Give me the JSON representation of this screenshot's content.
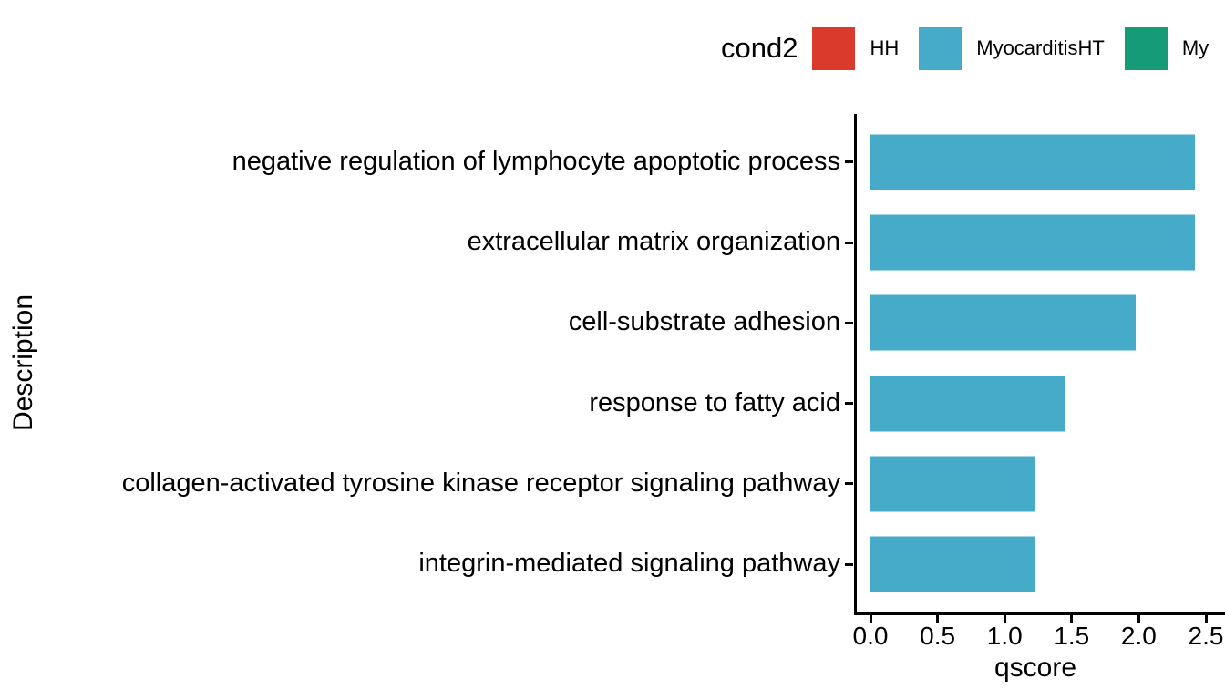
{
  "legend": {
    "title": "cond2",
    "items": [
      {
        "label": "HH",
        "color": "#d93a2b"
      },
      {
        "label": "MyocarditisHT",
        "color": "#45abc9"
      },
      {
        "label": "My",
        "color": "#169b77"
      }
    ]
  },
  "chart_data": {
    "type": "bar",
    "orientation": "horizontal",
    "title": "",
    "xlabel": "qscore",
    "ylabel": "Description",
    "categories": [
      "negative regulation of lymphocyte apoptotic process",
      "extracellular matrix organization",
      "cell-substrate adhesion",
      "response to fatty acid",
      "collagen-activated tyrosine kinase receptor signaling pathway",
      "integrin-mediated signaling pathway"
    ],
    "series": [
      {
        "name": "MyocarditisHT",
        "color": "#45abc9",
        "values": [
          2.42,
          2.42,
          1.98,
          1.45,
          1.23,
          1.22
        ]
      }
    ],
    "xlim": [
      0,
      2.5
    ],
    "xticks": [
      0.0,
      0.5,
      1.0,
      1.5,
      2.0,
      2.5
    ],
    "grid": false,
    "legend_position": "top-right"
  }
}
